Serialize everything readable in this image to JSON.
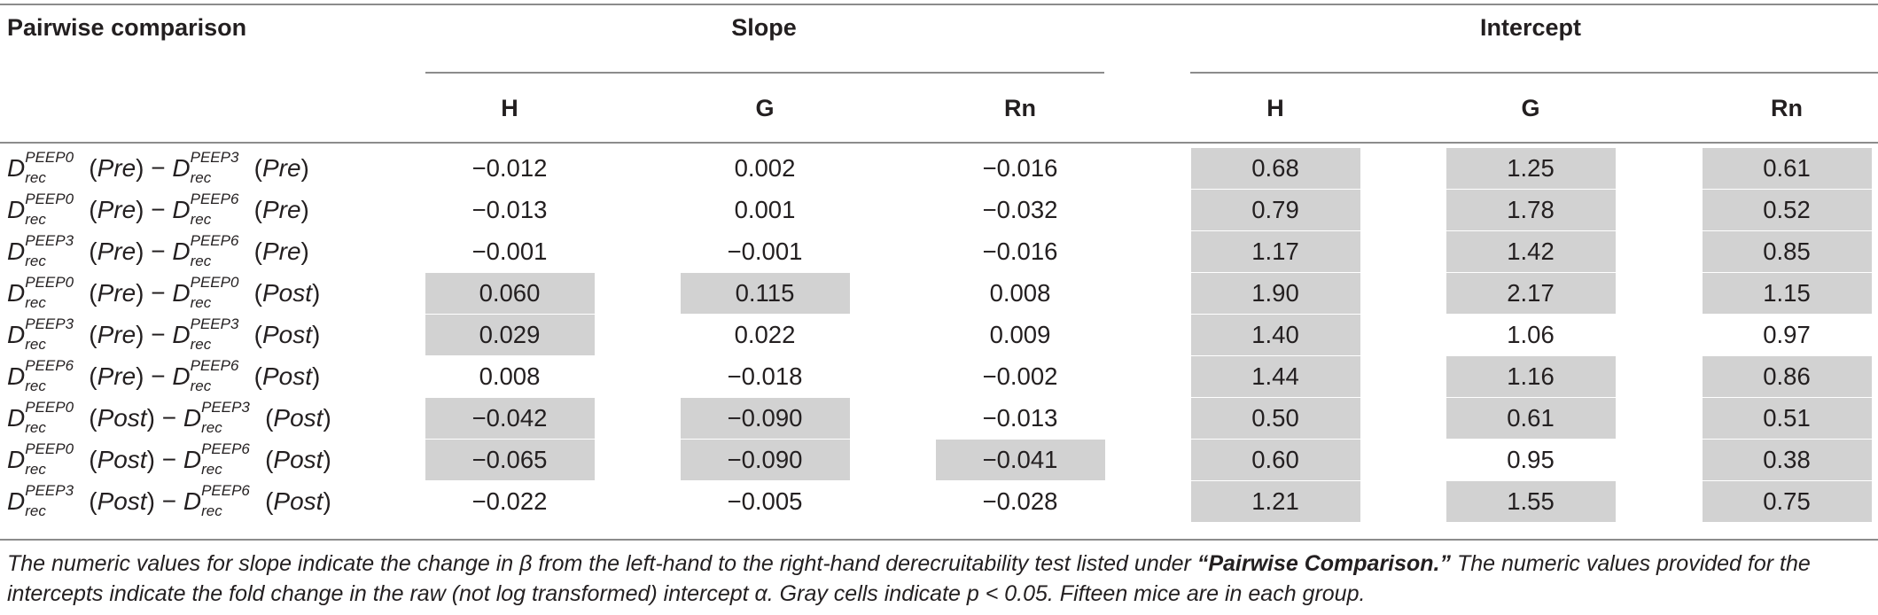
{
  "header": {
    "first_col": "Pairwise comparison",
    "group_slope": "Slope",
    "group_intercept": "Intercept",
    "sub": [
      "H",
      "G",
      "Rn",
      "H",
      "G",
      "Rn"
    ]
  },
  "symbol": {
    "base": "D",
    "sub": "rec"
  },
  "rows": [
    {
      "left_sup": "PEEP0",
      "left_phase": "Pre",
      "right_sup": "PEEP3",
      "right_phase": "Pre",
      "values": [
        "−0.012",
        "0.002",
        "−0.016",
        "0.68",
        "1.25",
        "0.61"
      ],
      "significant": [
        false,
        false,
        false,
        true,
        true,
        true
      ]
    },
    {
      "left_sup": "PEEP0",
      "left_phase": "Pre",
      "right_sup": "PEEP6",
      "right_phase": "Pre",
      "values": [
        "−0.013",
        "0.001",
        "−0.032",
        "0.79",
        "1.78",
        "0.52"
      ],
      "significant": [
        false,
        false,
        false,
        true,
        true,
        true
      ]
    },
    {
      "left_sup": "PEEP3",
      "left_phase": "Pre",
      "right_sup": "PEEP6",
      "right_phase": "Pre",
      "values": [
        "−0.001",
        "−0.001",
        "−0.016",
        "1.17",
        "1.42",
        "0.85"
      ],
      "significant": [
        false,
        false,
        false,
        true,
        true,
        true
      ]
    },
    {
      "left_sup": "PEEP0",
      "left_phase": "Pre",
      "right_sup": "PEEP0",
      "right_phase": "Post",
      "values": [
        "0.060",
        "0.115",
        "0.008",
        "1.90",
        "2.17",
        "1.15"
      ],
      "significant": [
        true,
        true,
        false,
        true,
        true,
        true
      ]
    },
    {
      "left_sup": "PEEP3",
      "left_phase": "Pre",
      "right_sup": "PEEP3",
      "right_phase": "Post",
      "values": [
        "0.029",
        "0.022",
        "0.009",
        "1.40",
        "1.06",
        "0.97"
      ],
      "significant": [
        true,
        false,
        false,
        true,
        false,
        false
      ]
    },
    {
      "left_sup": "PEEP6",
      "left_phase": "Pre",
      "right_sup": "PEEP6",
      "right_phase": "Post",
      "values": [
        "0.008",
        "−0.018",
        "−0.002",
        "1.44",
        "1.16",
        "0.86"
      ],
      "significant": [
        false,
        false,
        false,
        true,
        true,
        true
      ]
    },
    {
      "left_sup": "PEEP0",
      "left_phase": "Post",
      "right_sup": "PEEP3",
      "right_phase": "Post",
      "values": [
        "−0.042",
        "−0.090",
        "−0.013",
        "0.50",
        "0.61",
        "0.51"
      ],
      "significant": [
        true,
        true,
        false,
        true,
        true,
        true
      ]
    },
    {
      "left_sup": "PEEP0",
      "left_phase": "Post",
      "right_sup": "PEEP6",
      "right_phase": "Post",
      "values": [
        "−0.065",
        "−0.090",
        "−0.041",
        "0.60",
        "0.95",
        "0.38"
      ],
      "significant": [
        true,
        true,
        true,
        true,
        false,
        true
      ]
    },
    {
      "left_sup": "PEEP3",
      "left_phase": "Post",
      "right_sup": "PEEP6",
      "right_phase": "Post",
      "values": [
        "−0.022",
        "−0.005",
        "−0.028",
        "1.21",
        "1.55",
        "0.75"
      ],
      "significant": [
        false,
        false,
        false,
        true,
        true,
        true
      ]
    }
  ],
  "colors": {
    "significant_fill": "#d2d2d2",
    "rule": "#8c8c8c",
    "text": "#231f20"
  },
  "footnote": {
    "part1": "The numeric values for slope indicate the change in β from the left-hand to the right-hand derecruitability test listed under ",
    "quoted": "“Pairwise Comparison.”",
    "part2": " The numeric values provided for the intercepts indicate the fold change in the raw (not log transformed) intercept α. Gray cells indicate p < 0.05. Fifteen mice are in each group."
  }
}
